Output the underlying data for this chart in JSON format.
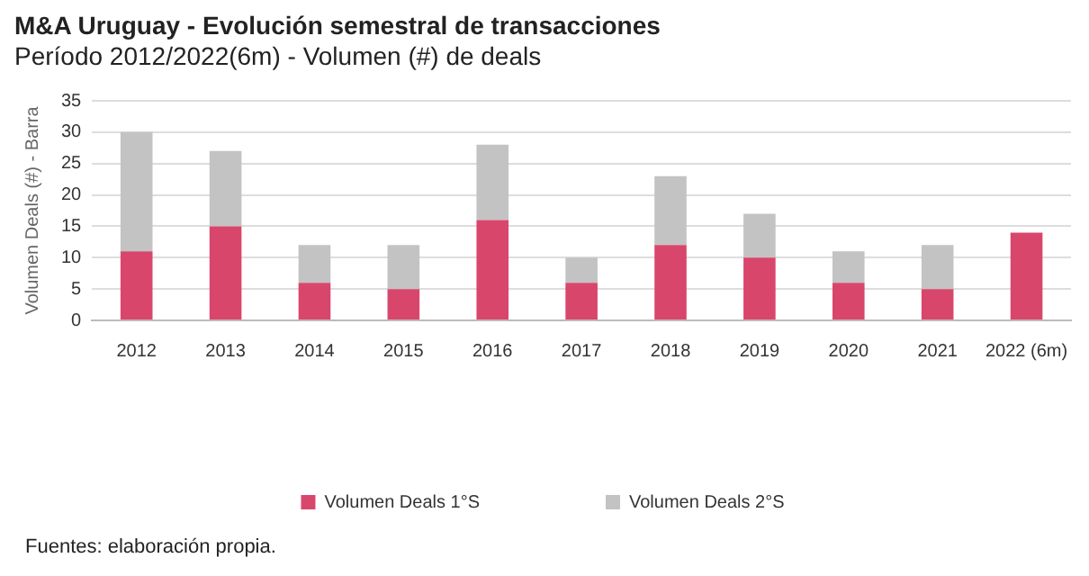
{
  "chart_data": {
    "type": "bar",
    "title": "M&A Uruguay - Evolución semestral de transacciones",
    "subtitle": "Período 2012/2022(6m) - Volumen (#) de deals",
    "ylabel": "Volumen Deals (#) - Barra",
    "categories": [
      "2012",
      "2013",
      "2014",
      "2015",
      "2016",
      "2017",
      "2018",
      "2019",
      "2020",
      "2021",
      "2022 (6m)"
    ],
    "series": [
      {
        "name": "Volumen Deals 1°S",
        "color": "#d9466b",
        "values": [
          11,
          15,
          6,
          5,
          16,
          6,
          12,
          10,
          6,
          5,
          14
        ]
      },
      {
        "name": "Volumen Deals 2°S",
        "color": "#c3c3c3",
        "values": [
          19,
          12,
          6,
          7,
          12,
          4,
          11,
          7,
          5,
          7,
          null
        ]
      }
    ],
    "stacked": true,
    "ylim": [
      0,
      35
    ],
    "yticks": [
      0,
      5,
      10,
      15,
      20,
      25,
      30,
      35
    ],
    "grid": "y",
    "legend": "bottom",
    "annotations": [
      "Fuentes: elaboración propia."
    ]
  }
}
